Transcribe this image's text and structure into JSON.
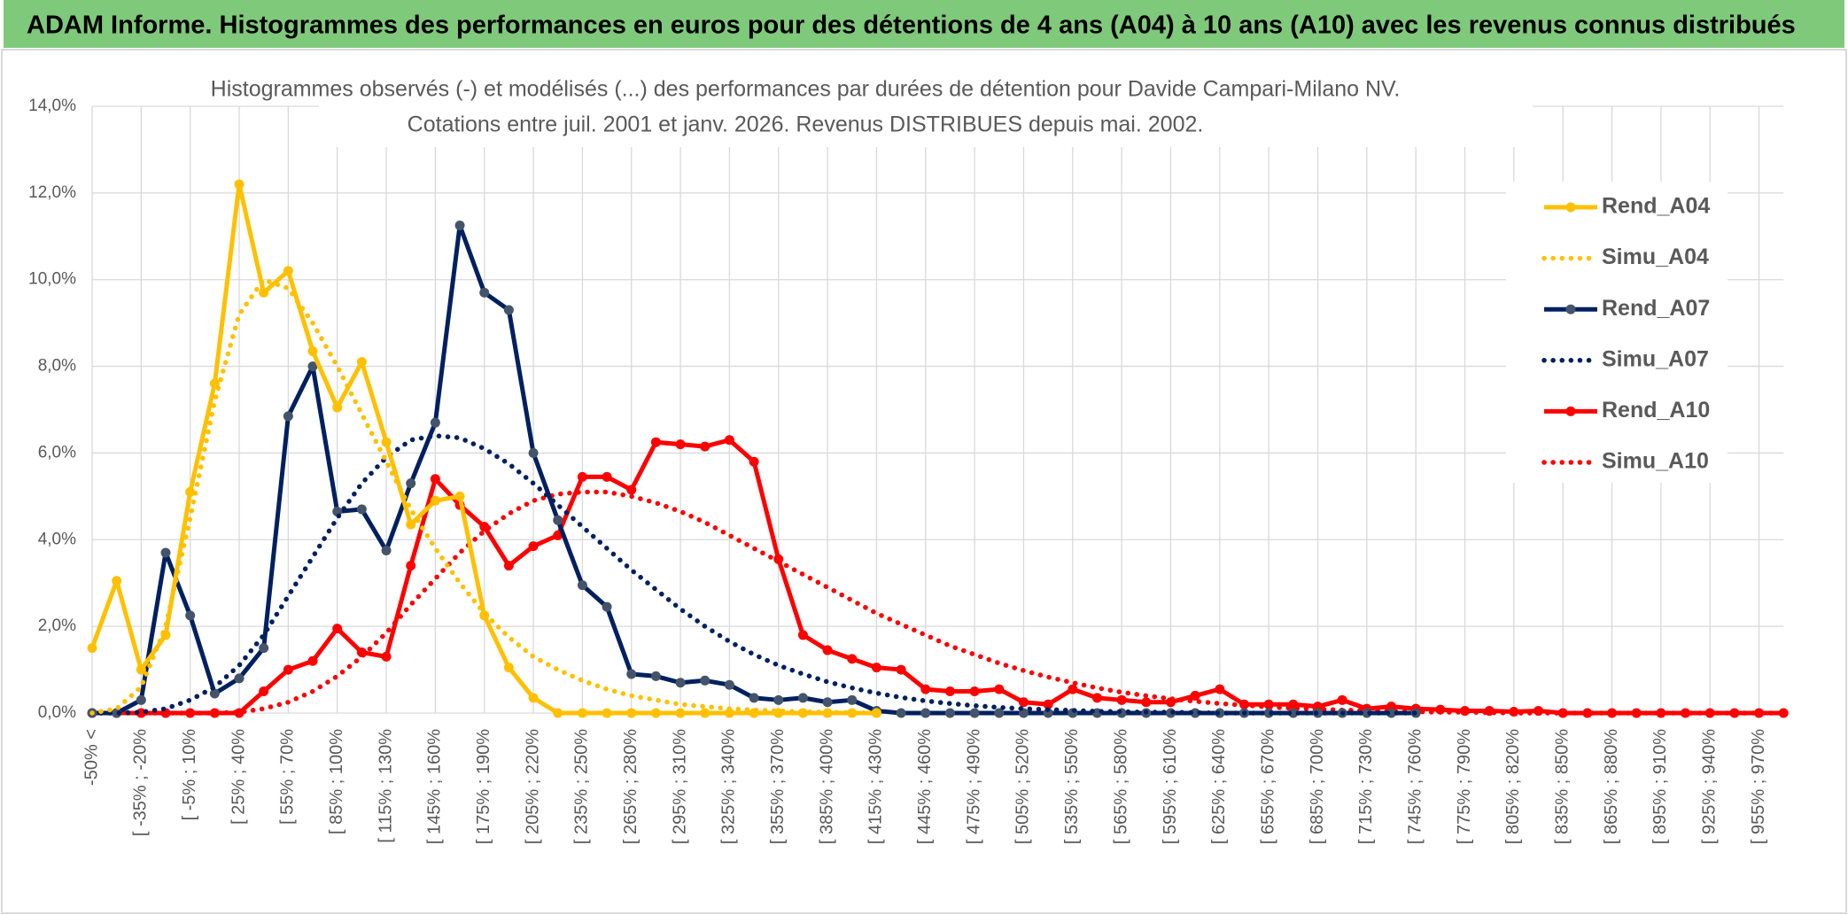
{
  "chart_data": {
    "type": "line",
    "header": "ADAM Informe. Histogrammes des performances en euros pour des détentions de 4 ans (A04) à 10 ans (A10) avec les revenus connus distribués",
    "title": "Histogrammes observés (-) et modélisés (...) des performances par durées de détention pour Davide Campari-Milano NV.",
    "subtitle": "Cotations entre juil. 2001 et janv. 2026. Revenus DISTRIBUES depuis mai. 2002.",
    "categories": [
      "-50% <",
      null,
      "[ -35% ; -20%",
      null,
      "[ -5% ; 10%",
      null,
      "[ 25% ; 40%",
      null,
      "[ 55% ; 70%",
      null,
      "[ 85% ; 100%",
      null,
      "[ 115% ; 130%",
      null,
      "[ 145% ; 160%",
      null,
      "[ 175% ; 190%",
      null,
      "[ 205% ; 220%",
      null,
      "[ 235% ; 250%",
      null,
      "[ 265% ; 280%",
      null,
      "[ 295% ; 310%",
      null,
      "[ 325% ; 340%",
      null,
      "[ 355% ; 370%",
      null,
      "[ 385% ; 400%",
      null,
      "[ 415% ; 430%",
      null,
      "[ 445% ; 460%",
      null,
      "[ 475% ; 490%",
      null,
      "[ 505% ; 520%",
      null,
      "[ 535% ; 550%",
      null,
      "[ 565% ; 580%",
      null,
      "[ 595% ; 610%",
      null,
      "[ 625% ; 640%",
      null,
      "[ 655% ; 670%",
      null,
      "[ 685% ; 700%",
      null,
      "[ 715% ; 730%",
      null,
      "[ 745% ; 760%",
      null,
      "[ 775% ; 790%",
      null,
      "[ 805% ; 820%",
      null,
      "[ 835% ; 850%",
      null,
      "[ 865% ; 880%",
      null,
      "[ 895% ; 910%",
      null,
      "[ 925% ; 940%",
      null,
      "[ 955% ; 970%",
      null
    ],
    "ylim": [
      0,
      14
    ],
    "yticks": [
      {
        "value": 0,
        "label": "0,0%"
      },
      {
        "value": 2,
        "label": "2,0%"
      },
      {
        "value": 4,
        "label": "4,0%"
      },
      {
        "value": 6,
        "label": "6,0%"
      },
      {
        "value": 8,
        "label": "8,0%"
      },
      {
        "value": 10,
        "label": "10,0%"
      },
      {
        "value": 12,
        "label": "12,0%"
      },
      {
        "value": 14,
        "label": "14,0%"
      }
    ],
    "grid": true,
    "legend": "right",
    "series": [
      {
        "name": "Rend_A04",
        "color": "#ffc000",
        "style": "solid",
        "values": [
          1.5,
          3.05,
          1.0,
          1.8,
          5.1,
          7.6,
          12.2,
          9.7,
          10.2,
          8.35,
          7.05,
          8.1,
          6.25,
          4.35,
          4.9,
          5.0,
          2.25,
          1.05,
          0.35,
          0,
          0,
          0,
          0,
          0,
          0,
          0,
          0,
          0,
          0,
          0,
          0,
          0,
          0,
          null,
          null,
          null,
          null,
          null,
          null,
          null,
          null,
          null,
          null,
          null,
          null,
          null,
          null,
          null,
          null,
          null,
          null,
          null,
          null,
          null,
          null,
          null,
          null,
          null,
          null,
          null,
          null,
          null,
          null,
          null,
          null,
          null,
          null,
          null,
          null,
          null
        ]
      },
      {
        "name": "Simu_A04",
        "color": "#ffc000",
        "style": "dotted",
        "values": [
          0,
          0.1,
          0.6,
          2.0,
          4.5,
          7.2,
          9.2,
          10.0,
          9.8,
          9.0,
          8.0,
          6.9,
          5.8,
          4.7,
          3.8,
          3.0,
          2.3,
          1.75,
          1.3,
          1.0,
          0.75,
          0.55,
          0.4,
          0.3,
          0.2,
          0.15,
          0.1,
          0.07,
          0.05,
          0.03,
          0.02,
          0.01,
          0,
          null,
          null,
          null,
          null,
          null,
          null,
          null,
          null,
          null,
          null,
          null,
          null,
          null,
          null,
          null,
          null,
          null,
          null,
          null,
          null,
          null,
          null,
          null,
          null,
          null,
          null,
          null,
          null,
          null,
          null,
          null,
          null,
          null,
          null,
          null,
          null,
          null
        ]
      },
      {
        "name": "Rend_A07",
        "color": "#002060",
        "style": "solid",
        "values": [
          0,
          0,
          0.3,
          3.7,
          2.25,
          0.45,
          0.8,
          1.5,
          6.85,
          8.0,
          4.65,
          4.7,
          3.75,
          5.3,
          6.7,
          11.25,
          9.7,
          9.3,
          6.0,
          4.45,
          2.95,
          2.45,
          0.9,
          0.85,
          0.7,
          0.75,
          0.65,
          0.35,
          0.3,
          0.35,
          0.25,
          0.3,
          0.05,
          0,
          0,
          0,
          0,
          0,
          0,
          0,
          0,
          0,
          0,
          0,
          0,
          0,
          0,
          0,
          0,
          0,
          0,
          0,
          0,
          0,
          0,
          null,
          null,
          null,
          null,
          null,
          null,
          null,
          null,
          null,
          null,
          null,
          null,
          null,
          null,
          null
        ]
      },
      {
        "name": "Simu_A07",
        "color": "#002060",
        "style": "dotted",
        "values": [
          0,
          0,
          0.02,
          0.1,
          0.3,
          0.6,
          1.1,
          1.8,
          2.7,
          3.6,
          4.5,
          5.3,
          5.9,
          6.3,
          6.4,
          6.35,
          6.1,
          5.75,
          5.3,
          4.8,
          4.3,
          3.8,
          3.3,
          2.85,
          2.4,
          2.0,
          1.65,
          1.35,
          1.1,
          0.9,
          0.72,
          0.58,
          0.46,
          0.36,
          0.28,
          0.22,
          0.17,
          0.13,
          0.1,
          0.08,
          0.06,
          0.04,
          0.03,
          0.02,
          0.02,
          0.01,
          0,
          0,
          0,
          0,
          0,
          0,
          0,
          0,
          0,
          null,
          null,
          null,
          null,
          null,
          null,
          null,
          null,
          null,
          null,
          null,
          null,
          null,
          null,
          null
        ]
      },
      {
        "name": "Rend_A10",
        "color": "#ff0000",
        "style": "solid",
        "values": [
          0,
          0,
          0,
          0,
          0,
          0,
          0,
          0.5,
          1.0,
          1.2,
          1.95,
          1.4,
          1.3,
          3.4,
          5.4,
          4.8,
          4.3,
          3.4,
          3.85,
          4.1,
          5.45,
          5.45,
          5.15,
          6.25,
          6.2,
          6.15,
          6.3,
          5.8,
          3.55,
          1.8,
          1.45,
          1.25,
          1.05,
          1.0,
          0.55,
          0.5,
          0.5,
          0.55,
          0.25,
          0.2,
          0.55,
          0.35,
          0.3,
          0.25,
          0.25,
          0.4,
          0.55,
          0.2,
          0.2,
          0.2,
          0.15,
          0.3,
          0.1,
          0.15,
          0.1,
          0.08,
          0.05,
          0.05,
          0.03,
          0.05,
          0,
          0,
          0,
          0,
          0,
          0,
          0,
          0,
          0,
          0
        ]
      },
      {
        "name": "Simu_A10",
        "color": "#ff0000",
        "style": "dotted",
        "values": [
          0,
          0,
          0,
          0,
          0,
          0,
          0.02,
          0.1,
          0.25,
          0.5,
          0.85,
          1.3,
          1.85,
          2.5,
          3.1,
          3.7,
          4.2,
          4.6,
          4.9,
          5.05,
          5.1,
          5.1,
          5.0,
          4.85,
          4.65,
          4.4,
          4.1,
          3.8,
          3.5,
          3.2,
          2.9,
          2.6,
          2.3,
          2.05,
          1.8,
          1.55,
          1.35,
          1.15,
          0.98,
          0.83,
          0.7,
          0.58,
          0.48,
          0.4,
          0.33,
          0.27,
          0.22,
          0.18,
          0.14,
          0.11,
          0.09,
          0.07,
          0.05,
          0.04,
          0.03,
          0.02,
          0.02,
          0.01,
          0,
          0,
          0,
          0,
          0,
          0,
          0,
          0,
          0,
          0,
          0,
          0
        ]
      }
    ]
  }
}
